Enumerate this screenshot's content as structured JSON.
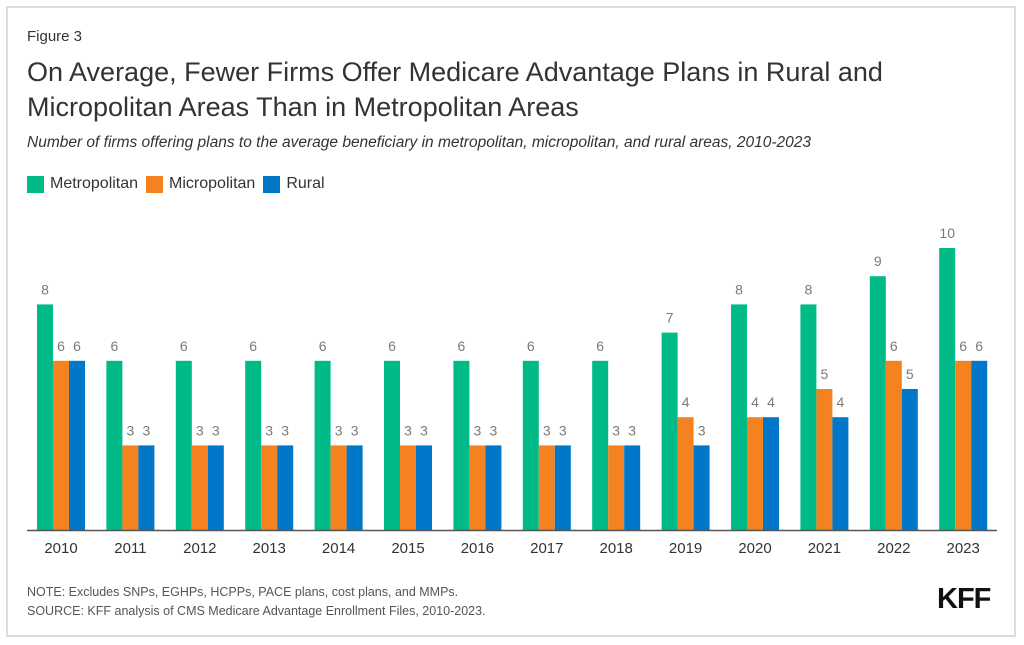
{
  "figure_label": "Figure 3",
  "title": "On Average, Fewer Firms Offer Medicare Advantage Plans in Rural and Micropolitan Areas Than in Metropolitan Areas",
  "subtitle": "Number of firms offering plans to the average beneficiary in metropolitan, micropolitan, and rural areas, 2010-2023",
  "note": "NOTE: Excludes SNPs, EGHPs, HCPPs, PACE plans, cost plans, and MMPs.",
  "source": "SOURCE: KFF analysis of CMS Medicare Advantage Enrollment Files, 2010-2023.",
  "logo": "KFF",
  "chart_data": {
    "type": "bar",
    "title": "On Average, Fewer Firms Offer Medicare Advantage Plans in Rural and Micropolitan Areas Than in Metropolitan Areas",
    "subtitle": "Number of firms offering plans to the average beneficiary in metropolitan, micropolitan, and rural areas, 2010-2023",
    "xlabel": "",
    "ylabel": "",
    "ylim": [
      0,
      10
    ],
    "grid": false,
    "legend_position": "top-left",
    "categories": [
      "2010",
      "2011",
      "2012",
      "2013",
      "2014",
      "2015",
      "2016",
      "2017",
      "2018",
      "2019",
      "2020",
      "2021",
      "2022",
      "2023"
    ],
    "series": [
      {
        "name": "Metropolitan",
        "color": "#00bb87",
        "values": [
          8,
          6,
          6,
          6,
          6,
          6,
          6,
          6,
          6,
          7,
          8,
          8,
          9,
          10
        ]
      },
      {
        "name": "Micropolitan",
        "color": "#f58220",
        "values": [
          6,
          3,
          3,
          3,
          3,
          3,
          3,
          3,
          3,
          4,
          4,
          5,
          6,
          6
        ]
      },
      {
        "name": "Rural",
        "color": "#0077c8",
        "values": [
          6,
          3,
          3,
          3,
          3,
          3,
          3,
          3,
          3,
          3,
          4,
          4,
          5,
          6
        ]
      }
    ]
  }
}
